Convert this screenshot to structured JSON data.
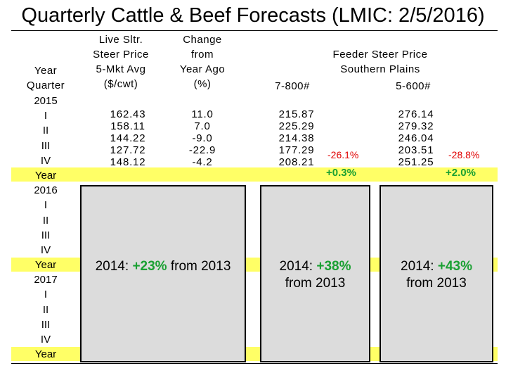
{
  "title": "Quarterly Cattle & Beef Forecasts (LMIC: 2/5/2016)",
  "year_column": {
    "header_year": "Year",
    "header_quarter": "Quarter",
    "rows": [
      "2015",
      "I",
      "II",
      "III",
      "IV",
      "Year",
      "2016",
      "I",
      "II",
      "III",
      "IV",
      "Year",
      "2017",
      "I",
      "II",
      "III",
      "IV",
      "Year"
    ]
  },
  "headers": {
    "live_steer": [
      "Live Sltr.",
      "Steer Price",
      "5-Mkt Avg",
      "($/cwt)"
    ],
    "change": [
      "Change",
      "from",
      "Year Ago",
      "(%)"
    ],
    "feeder_title": [
      "Feeder Steer Price",
      "Southern Plains"
    ],
    "feeder_700": "7-800#",
    "feeder_500": "5-600#"
  },
  "data_2015": {
    "live_steer": [
      "162.43",
      "158.11",
      "144.22",
      "127.72",
      "148.12"
    ],
    "change": [
      "11.0",
      "7.0",
      "-9.0",
      "-22.9",
      "-4.2"
    ],
    "feeder_700": [
      "215.87",
      "225.29",
      "214.38",
      "177.29",
      "208.21"
    ],
    "feeder_500": [
      "276.14",
      "279.32",
      "246.04",
      "203.51",
      "251.25"
    ]
  },
  "annotations": {
    "feeder_700_q4_change": "-26.1%",
    "feeder_700_year_change": "+0.3%",
    "feeder_500_q4_change": "-28.8%",
    "feeder_500_year_change": "+2.0%"
  },
  "panels": {
    "live": {
      "prefix": "2014: ",
      "pct": "+23%",
      "suffix": " from 2013"
    },
    "feeder_700": {
      "prefix": "2014: ",
      "pct": "+38%",
      "line2": "from 2013"
    },
    "feeder_500": {
      "prefix": "2014: ",
      "pct": "+43%",
      "line2": "from 2013"
    }
  },
  "colors": {
    "year_highlight": "#ffff66",
    "panel_fill": "#dcdcdc",
    "increase": "#1aa032",
    "decrease": "#e00000"
  }
}
